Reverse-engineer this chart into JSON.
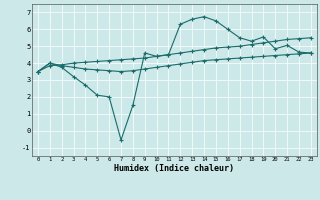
{
  "xlabel": "Humidex (Indice chaleur)",
  "background_color": "#cce8e8",
  "grid_color": "#ffffff",
  "line_color": "#1a6b6b",
  "xlim": [
    -0.5,
    23.5
  ],
  "ylim": [
    -1.5,
    7.5
  ],
  "xticks": [
    0,
    1,
    2,
    3,
    4,
    5,
    6,
    7,
    8,
    9,
    10,
    11,
    12,
    13,
    14,
    15,
    16,
    17,
    18,
    19,
    20,
    21,
    22,
    23
  ],
  "yticks": [
    -1,
    0,
    1,
    2,
    3,
    4,
    5,
    6,
    7
  ],
  "line1_x": [
    0,
    1,
    2,
    3,
    4,
    5,
    6,
    7,
    8,
    9,
    10,
    11,
    12,
    13,
    14,
    15,
    16,
    17,
    18,
    19,
    20,
    21,
    22,
    23
  ],
  "line1_y": [
    3.5,
    4.0,
    3.75,
    3.2,
    2.7,
    2.1,
    2.0,
    -0.55,
    1.5,
    4.6,
    4.4,
    4.5,
    6.3,
    6.6,
    6.75,
    6.5,
    6.0,
    5.5,
    5.3,
    5.55,
    4.85,
    5.05,
    4.65,
    4.6
  ],
  "line2_x": [
    0,
    1,
    2,
    3,
    4,
    5,
    6,
    7,
    8,
    9,
    10,
    11,
    12,
    13,
    14,
    15,
    16,
    17,
    18,
    19,
    20,
    21,
    22,
    23
  ],
  "line2_y": [
    3.5,
    3.85,
    3.9,
    4.0,
    4.05,
    4.1,
    4.15,
    4.2,
    4.25,
    4.3,
    4.4,
    4.5,
    4.6,
    4.7,
    4.8,
    4.9,
    4.95,
    5.0,
    5.1,
    5.2,
    5.3,
    5.4,
    5.45,
    5.5
  ],
  "line3_x": [
    0,
    1,
    2,
    3,
    4,
    5,
    6,
    7,
    8,
    9,
    10,
    11,
    12,
    13,
    14,
    15,
    16,
    17,
    18,
    19,
    20,
    21,
    22,
    23
  ],
  "line3_y": [
    3.5,
    4.0,
    3.85,
    3.75,
    3.65,
    3.6,
    3.55,
    3.5,
    3.55,
    3.65,
    3.75,
    3.85,
    3.95,
    4.05,
    4.15,
    4.2,
    4.25,
    4.3,
    4.35,
    4.4,
    4.45,
    4.5,
    4.55,
    4.6
  ]
}
